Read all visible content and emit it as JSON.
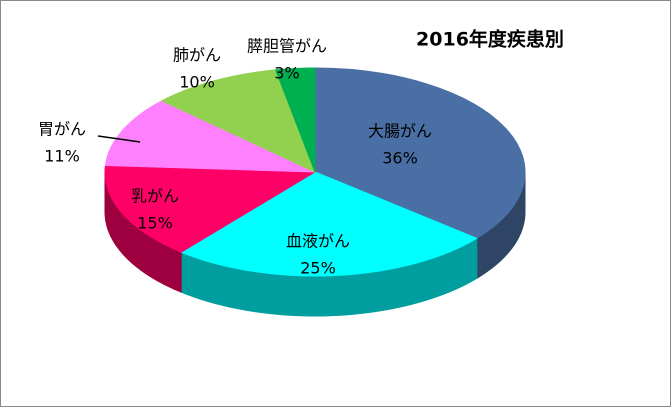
{
  "chart_data": {
    "type": "pie3d",
    "title": "2016年度疾患別",
    "categories": [
      "大腸がん",
      "血液がん",
      "乳がん",
      "胃がん",
      "肺がん",
      "膵胆管がん"
    ],
    "values": [
      36,
      25,
      15,
      11,
      10,
      3
    ],
    "value_labels": [
      "36%",
      "25%",
      "15%",
      "11%",
      "10%",
      "3%"
    ],
    "colors": [
      "#4a6fa5",
      "#00ffff",
      "#ff0066",
      "#ff80ff",
      "#92d050",
      "#00b050"
    ]
  }
}
